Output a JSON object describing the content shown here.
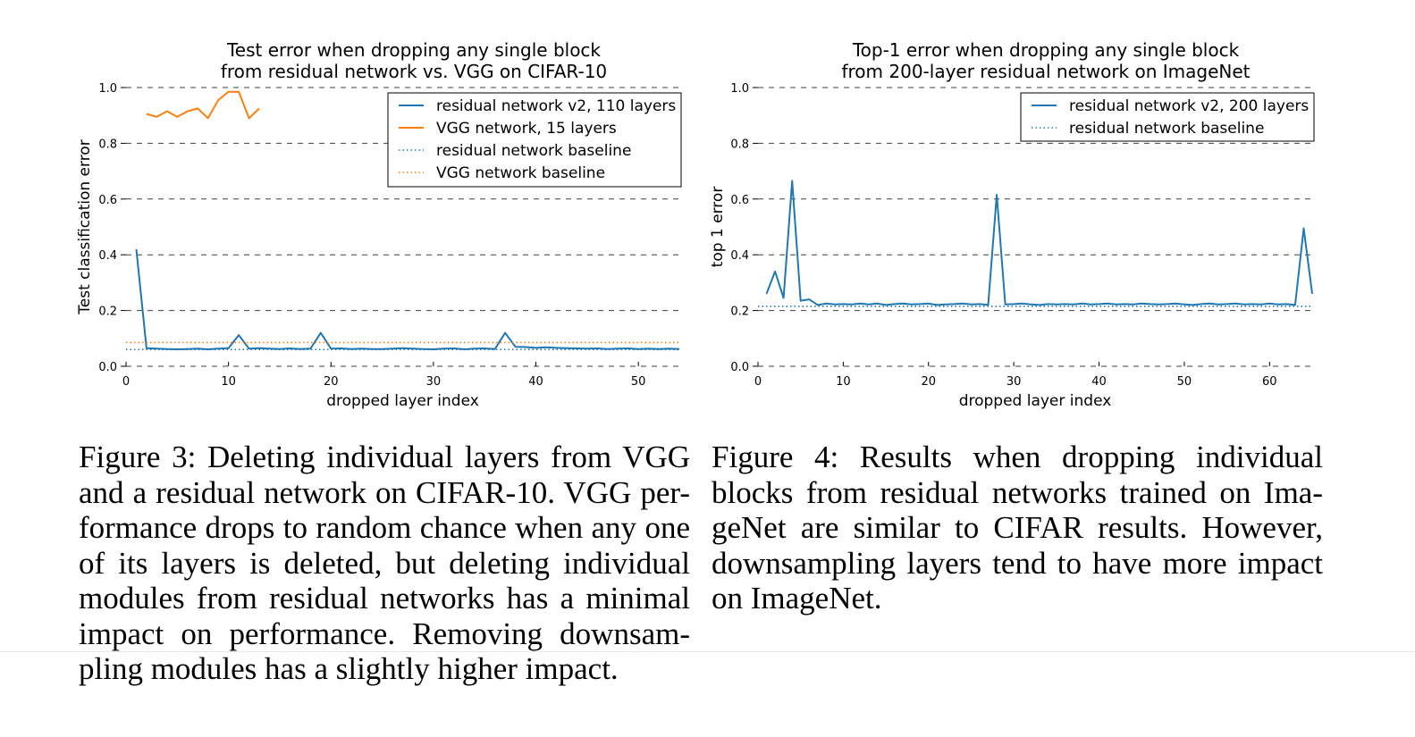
{
  "chart_data": [
    {
      "type": "line",
      "title": "Test error when dropping any single block\nfrom residual network vs. VGG on CIFAR-10",
      "xlabel": "dropped layer index",
      "ylabel": "Test classification error",
      "xlim": [
        0,
        54
      ],
      "ylim": [
        0.0,
        1.0
      ],
      "xticks": [
        0,
        10,
        20,
        30,
        40,
        50
      ],
      "yticks": [
        0.0,
        0.2,
        0.4,
        0.6,
        0.8,
        1.0
      ],
      "grid": "horizontal dashed",
      "legend_position": "top-right",
      "series": [
        {
          "name": "residual network v2, 110 layers",
          "style": "solid",
          "color": "#1f77b4",
          "x": [
            1,
            2,
            3,
            4,
            5,
            6,
            7,
            8,
            9,
            10,
            11,
            12,
            13,
            14,
            15,
            16,
            17,
            18,
            19,
            20,
            21,
            22,
            23,
            24,
            25,
            26,
            27,
            28,
            29,
            30,
            31,
            32,
            33,
            34,
            35,
            36,
            37,
            38,
            39,
            40,
            41,
            42,
            43,
            44,
            45,
            46,
            47,
            48,
            49,
            50,
            51,
            52,
            53,
            54
          ],
          "values": [
            0.42,
            0.065,
            0.063,
            0.062,
            0.061,
            0.062,
            0.063,
            0.061,
            0.063,
            0.065,
            0.112,
            0.063,
            0.065,
            0.063,
            0.062,
            0.064,
            0.062,
            0.063,
            0.12,
            0.063,
            0.064,
            0.062,
            0.063,
            0.062,
            0.062,
            0.063,
            0.065,
            0.063,
            0.062,
            0.061,
            0.063,
            0.064,
            0.061,
            0.063,
            0.064,
            0.062,
            0.12,
            0.07,
            0.069,
            0.066,
            0.068,
            0.066,
            0.065,
            0.064,
            0.063,
            0.064,
            0.062,
            0.063,
            0.064,
            0.062,
            0.063,
            0.062,
            0.063,
            0.062
          ]
        },
        {
          "name": "VGG network, 15 layers",
          "style": "solid",
          "color": "#ff7f0e",
          "x": [
            2,
            3,
            4,
            5,
            6,
            7,
            8,
            9,
            10,
            11,
            12,
            13
          ],
          "values": [
            0.905,
            0.895,
            0.915,
            0.895,
            0.915,
            0.925,
            0.89,
            0.955,
            0.985,
            0.985,
            0.89,
            0.925
          ]
        },
        {
          "name": "residual network baseline",
          "style": "dotted",
          "color": "#1f77b4",
          "constant": 0.06
        },
        {
          "name": "VGG network baseline",
          "style": "dotted",
          "color": "#ff7f0e",
          "constant": 0.085
        }
      ]
    },
    {
      "type": "line",
      "title": "Top-1 error when dropping any single block\nfrom 200-layer residual network on ImageNet",
      "xlabel": "dropped layer index",
      "ylabel": "top 1 error",
      "xlim": [
        0,
        65
      ],
      "ylim": [
        0.0,
        1.0
      ],
      "xticks": [
        0,
        10,
        20,
        30,
        40,
        50,
        60
      ],
      "yticks": [
        0.0,
        0.2,
        0.4,
        0.6,
        0.8,
        1.0
      ],
      "grid": "horizontal dashed",
      "legend_position": "top-right",
      "series": [
        {
          "name": "residual network v2, 200 layers",
          "style": "solid",
          "color": "#1f77b4",
          "x": [
            1,
            2,
            3,
            4,
            5,
            6,
            7,
            8,
            9,
            10,
            11,
            12,
            13,
            14,
            15,
            16,
            17,
            18,
            19,
            20,
            21,
            22,
            23,
            24,
            25,
            26,
            27,
            28,
            29,
            30,
            31,
            32,
            33,
            34,
            35,
            36,
            37,
            38,
            39,
            40,
            41,
            42,
            43,
            44,
            45,
            46,
            47,
            48,
            49,
            50,
            51,
            52,
            53,
            54,
            55,
            56,
            57,
            58,
            59,
            60,
            61,
            62,
            63,
            64,
            65
          ],
          "values": [
            0.26,
            0.34,
            0.245,
            0.665,
            0.235,
            0.24,
            0.22,
            0.225,
            0.222,
            0.223,
            0.222,
            0.225,
            0.222,
            0.225,
            0.22,
            0.223,
            0.225,
            0.222,
            0.223,
            0.225,
            0.22,
            0.222,
            0.223,
            0.225,
            0.222,
            0.223,
            0.22,
            0.615,
            0.222,
            0.223,
            0.225,
            0.222,
            0.22,
            0.223,
            0.222,
            0.223,
            0.222,
            0.225,
            0.222,
            0.223,
            0.225,
            0.222,
            0.223,
            0.222,
            0.225,
            0.223,
            0.222,
            0.223,
            0.225,
            0.222,
            0.22,
            0.223,
            0.225,
            0.222,
            0.223,
            0.225,
            0.222,
            0.223,
            0.222,
            0.225,
            0.222,
            0.223,
            0.22,
            0.495,
            0.26
          ]
        },
        {
          "name": "residual network baseline",
          "style": "dotted",
          "color": "#1f77b4",
          "constant": 0.215
        }
      ]
    }
  ],
  "captions": {
    "figure3": [
      "Figure 3:  Deleting individual layers from VGG",
      "and a residual network on CIFAR-10. VGG per-",
      "formance drops to random chance when any one",
      "of its layers is deleted, but deleting individual",
      "modules from residual networks has a minimal",
      "impact on performance.  Removing downsam-",
      "pling modules has a slightly higher impact."
    ],
    "figure4": [
      "Figure 4:    Results when dropping individual",
      "blocks from residual networks trained on Ima-",
      "geNet are similar to CIFAR results.  However,",
      "downsampling layers tend to have more impact",
      "on ImageNet."
    ]
  }
}
